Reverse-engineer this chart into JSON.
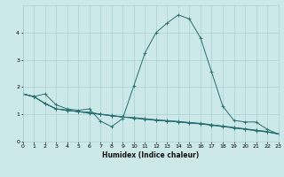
{
  "xlabel": "Humidex (Indice chaleur)",
  "bg_color": "#cce8e8",
  "grid_color": "#aad0d0",
  "line_color": "#267070",
  "x_values": [
    0,
    1,
    2,
    3,
    4,
    5,
    6,
    7,
    8,
    9,
    10,
    11,
    12,
    13,
    14,
    15,
    16,
    17,
    18,
    19,
    20,
    21,
    22,
    23
  ],
  "line_main": [
    1.75,
    1.65,
    1.75,
    1.35,
    1.2,
    1.15,
    1.2,
    0.75,
    0.55,
    0.85,
    2.05,
    3.25,
    4.0,
    4.35,
    4.65,
    4.5,
    3.8,
    2.55,
    1.3,
    0.78,
    0.72,
    0.72,
    0.45,
    0.28
  ],
  "line2": [
    1.75,
    1.65,
    1.4,
    1.2,
    1.15,
    1.1,
    1.08,
    1.0,
    0.95,
    0.9,
    0.88,
    0.84,
    0.8,
    0.77,
    0.74,
    0.7,
    0.67,
    0.62,
    0.57,
    0.52,
    0.47,
    0.42,
    0.37,
    0.28
  ],
  "line3": [
    1.75,
    1.65,
    1.4,
    1.2,
    1.15,
    1.1,
    1.06,
    1.01,
    0.96,
    0.91,
    0.87,
    0.83,
    0.79,
    0.76,
    0.73,
    0.69,
    0.66,
    0.61,
    0.56,
    0.51,
    0.46,
    0.41,
    0.36,
    0.28
  ],
  "line4": [
    1.75,
    1.65,
    1.4,
    1.2,
    1.15,
    1.1,
    1.04,
    1.0,
    0.95,
    0.9,
    0.86,
    0.82,
    0.78,
    0.75,
    0.72,
    0.68,
    0.65,
    0.6,
    0.55,
    0.5,
    0.45,
    0.4,
    0.35,
    0.28
  ],
  "ylim": [
    0,
    5.0
  ],
  "xlim": [
    0,
    23
  ],
  "yticks": [
    0,
    1,
    2,
    3,
    4
  ],
  "xticks": [
    0,
    1,
    2,
    3,
    4,
    5,
    6,
    7,
    8,
    9,
    10,
    11,
    12,
    13,
    14,
    15,
    16,
    17,
    18,
    19,
    20,
    21,
    22,
    23
  ],
  "xlabel_fontsize": 5.5,
  "tick_fontsize": 4.5,
  "linewidth": 0.7,
  "marker_size": 2.5
}
